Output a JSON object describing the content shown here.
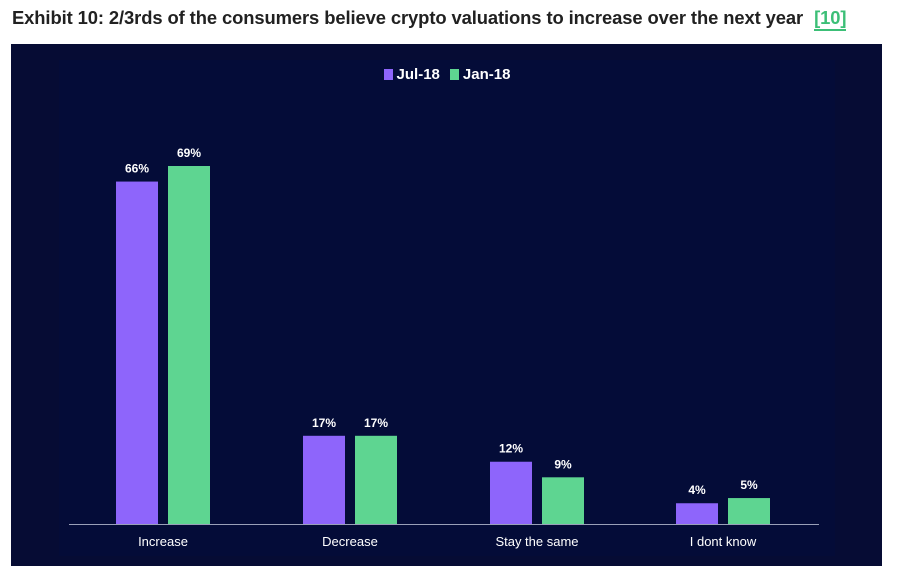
{
  "exhibit": {
    "title": "Exhibit 10: 2/3rds of the consumers believe crypto valuations to increase over the next year",
    "reference": "[10]"
  },
  "colors": {
    "panel_background": "#060c34",
    "series_1": "#8e65fb",
    "series_2": "#5ed591",
    "reference_link": "#3cbf77"
  },
  "chart_data": {
    "type": "bar",
    "title": "",
    "xlabel": "",
    "ylabel": "",
    "categories": [
      "Increase",
      "Decrease",
      "Stay the same",
      "I dont know"
    ],
    "series": [
      {
        "name": "Jul-18",
        "values": [
          66,
          17,
          12,
          4
        ],
        "labels": [
          "66%",
          "17%",
          "12%",
          "4%"
        ],
        "color": "#8e65fb"
      },
      {
        "name": "Jan-18",
        "values": [
          69,
          17,
          9,
          5
        ],
        "labels": [
          "69%",
          "17%",
          "9%",
          "5%"
        ],
        "color": "#5ed591"
      }
    ],
    "ylim": [
      0,
      69
    ],
    "grid": false,
    "legend_position": "top-center",
    "value_unit": "%"
  }
}
